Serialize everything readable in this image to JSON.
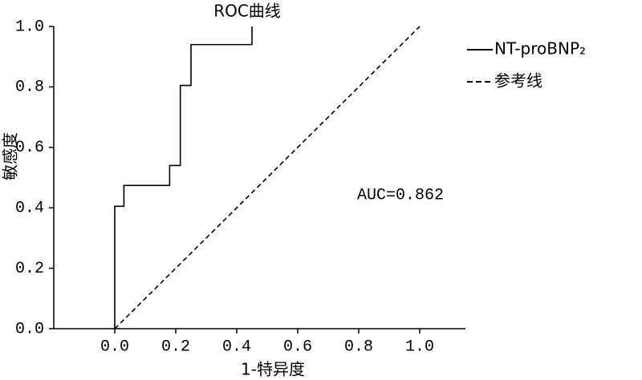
{
  "chart_data": {
    "type": "line",
    "title": "ROC曲线",
    "xlabel": "1-特异度",
    "ylabel": "敏感度",
    "xlim": [
      -0.2,
      1.15
    ],
    "ylim": [
      0,
      1.0
    ],
    "xticks": [
      {
        "value": 0,
        "label": "0.0"
      },
      0.2,
      0.4,
      0.6,
      0.8,
      {
        "value": 1,
        "label": "1.0"
      }
    ],
    "yticks": [
      {
        "value": 0,
        "label": "0.0"
      },
      0.2,
      0.4,
      0.6,
      0.8,
      {
        "value": 1,
        "label": "1.0"
      }
    ],
    "series": [
      {
        "name": "NT-proBNP₂",
        "color": "#000000",
        "dashed": false,
        "x": [
          0,
          0,
          0.03,
          0.03,
          0.18,
          0.18,
          0.215,
          0.215,
          0.25,
          0.25,
          0.45,
          0.45
        ],
        "values": [
          0,
          0.405,
          0.405,
          0.474,
          0.474,
          0.54,
          0.54,
          0.805,
          0.805,
          0.94,
          0.94,
          1.0
        ]
      },
      {
        "name": "参考线",
        "color": "#000000",
        "dashed": true,
        "x": [
          0,
          1
        ],
        "values": [
          0,
          1
        ]
      }
    ],
    "annotations": [
      "AUC=0.862"
    ],
    "annotation_positions_hint": null
  }
}
